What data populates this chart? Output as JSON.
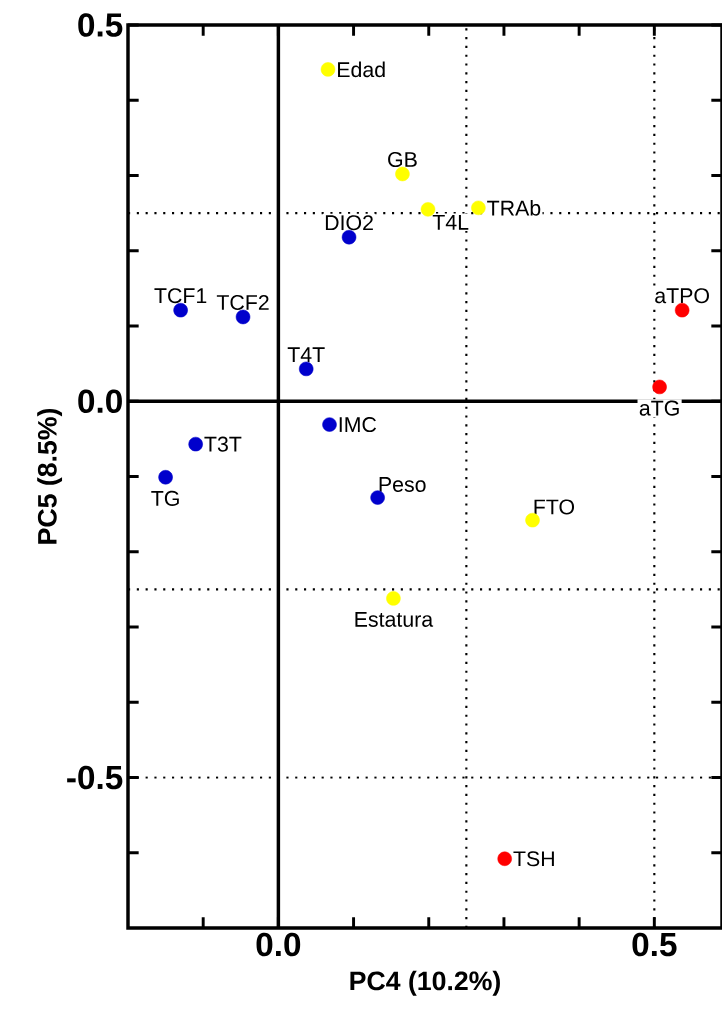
{
  "chart_data": {
    "type": "scatter",
    "xlabel": "PC4 (10.2%)",
    "ylabel": "PC5 (8.5%)",
    "xlim": [
      -0.2,
      0.59
    ],
    "ylim": [
      -0.7,
      0.5
    ],
    "xticks": [
      {
        "value": -0.1,
        "label": null
      },
      {
        "value": 0,
        "label": "0.0"
      },
      {
        "value": 0.1,
        "label": null
      },
      {
        "value": 0.2,
        "label": null
      },
      {
        "value": 0.3,
        "label": null
      },
      {
        "value": 0.4,
        "label": null
      },
      0.5
    ],
    "yticks": [
      {
        "value": -0.6,
        "label": null
      },
      -0.5,
      {
        "value": -0.4,
        "label": null
      },
      {
        "value": -0.3,
        "label": null
      },
      {
        "value": -0.2,
        "label": null
      },
      {
        "value": -0.1,
        "label": null
      },
      {
        "value": 0,
        "label": "0.0"
      },
      {
        "value": 0.1,
        "label": null
      },
      {
        "value": 0.2,
        "label": null
      },
      {
        "value": 0.3,
        "label": null
      },
      {
        "value": 0.4,
        "label": null
      },
      0.5
    ],
    "marker": "circle",
    "series": [
      {
        "color": "#ffff00",
        "x": [
          0.066,
          0.165,
          0.199,
          0.266,
          0.338,
          0.153
        ],
        "values": [
          0.441,
          0.302,
          0.255,
          0.257,
          -0.158,
          -0.262
        ]
      },
      {
        "color": "#0000cc",
        "x": [
          0.094,
          -0.13,
          -0.047,
          0.037,
          0.068,
          -0.11,
          -0.15,
          0.132
        ],
        "values": [
          0.218,
          0.121,
          0.112,
          0.043,
          -0.031,
          -0.057,
          -0.101,
          -0.128
        ]
      },
      {
        "color": "#ff0000",
        "x": [
          0.537,
          0.507,
          0.301
        ],
        "values": [
          0.121,
          0.019,
          -0.608
        ]
      }
    ],
    "ref_lines": [
      {
        "axis": "x",
        "value": 0,
        "line_style": "solid"
      },
      {
        "axis": "y",
        "value": 0,
        "line_style": "solid"
      },
      {
        "axis": "x",
        "value": 0.25,
        "line_style": "dotted"
      },
      {
        "axis": "x",
        "value": 0.5,
        "line_style": "dotted"
      },
      {
        "axis": "y",
        "value": 0.25,
        "line_style": "dotted"
      },
      {
        "axis": "y",
        "value": -0.25,
        "line_style": "dotted"
      },
      {
        "axis": "y",
        "value": -0.5,
        "line_style": "dotted"
      }
    ],
    "annotations": [
      {
        "text": "Edad",
        "x": 0.066,
        "y": 0.441
      },
      {
        "text": "GB",
        "x": 0.165,
        "y": 0.302
      },
      {
        "text": "T4L",
        "x": 0.199,
        "y": 0.255
      },
      {
        "text": "TRAb",
        "x": 0.266,
        "y": 0.257
      },
      {
        "text": "DIO2",
        "x": 0.094,
        "y": 0.218
      },
      {
        "text": "TCF1",
        "x": -0.13,
        "y": 0.121
      },
      {
        "text": "TCF2",
        "x": -0.047,
        "y": 0.112
      },
      {
        "text": "aTPO",
        "x": 0.537,
        "y": 0.121
      },
      {
        "text": "T4T",
        "x": 0.037,
        "y": 0.043
      },
      {
        "text": "aTG",
        "x": 0.507,
        "y": 0.019
      },
      {
        "text": "IMC",
        "x": 0.068,
        "y": -0.031
      },
      {
        "text": "T3T",
        "x": -0.11,
        "y": -0.057
      },
      {
        "text": "TG",
        "x": -0.15,
        "y": -0.101
      },
      {
        "text": "Peso",
        "x": 0.132,
        "y": -0.128
      },
      {
        "text": "FTO",
        "x": 0.338,
        "y": -0.158
      },
      {
        "text": "Estatura",
        "x": 0.153,
        "y": -0.262
      },
      {
        "text": "TSH",
        "x": 0.301,
        "y": -0.608
      }
    ]
  }
}
